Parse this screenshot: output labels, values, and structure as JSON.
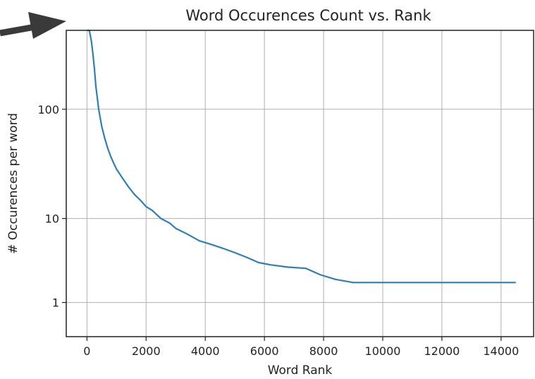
{
  "chart_data": {
    "type": "line",
    "title": "Word Occurences Count vs. Rank",
    "xlabel": "Word Rank",
    "ylabel": "# Occurences per word",
    "xlim": [
      -700,
      15100
    ],
    "ylim": [
      0,
      500
    ],
    "x_ticks": [
      0,
      2000,
      4000,
      6000,
      8000,
      10000,
      12000,
      14000
    ],
    "x_tick_labels": [
      "0",
      "2000",
      "4000",
      "6000",
      "8000",
      "10000",
      "12000",
      "14000"
    ],
    "y_ticks": [
      1,
      10,
      100
    ],
    "y_tick_labels": [
      "1",
      "10",
      "100"
    ],
    "grid": true,
    "line_color": "#2f7fb5",
    "series": [
      {
        "x": [
          5,
          80,
          150,
          200,
          250,
          300,
          400,
          500,
          600,
          700,
          800,
          900,
          1000,
          1200,
          1400,
          1600,
          1800,
          2000,
          2200,
          2500,
          2800,
          3000,
          3400,
          3800,
          4200,
          4600,
          5000,
          5400,
          5800,
          6200,
          6800,
          7400,
          7900,
          8400,
          9000,
          10000,
          11000,
          12000,
          13000,
          14000,
          14500
        ],
        "y": [
          500,
          500,
          400,
          310,
          230,
          160,
          98,
          70,
          55,
          45,
          38,
          33,
          29,
          24,
          20,
          17,
          15,
          13,
          12,
          10,
          9,
          8,
          7,
          6,
          5.5,
          5,
          4.5,
          4,
          3.5,
          3.3,
          3.1,
          3,
          2.5,
          2.2,
          2,
          2,
          2,
          2,
          2,
          2,
          2
        ]
      }
    ]
  },
  "arrow_color": "#3a3a3a"
}
